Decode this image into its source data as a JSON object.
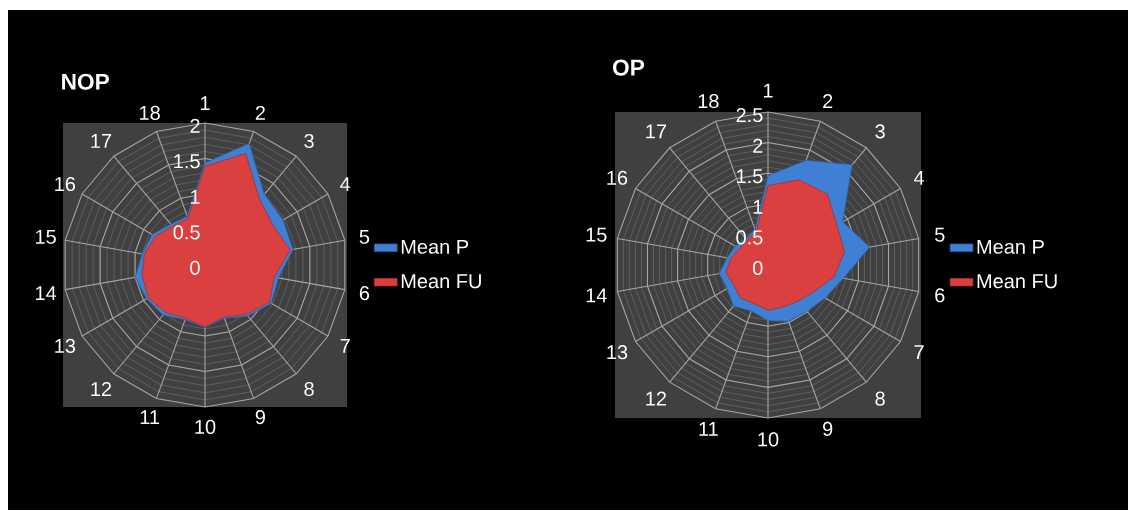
{
  "chart_data": [
    {
      "type": "radar",
      "title": "NOP",
      "categories": [
        "1",
        "2",
        "3",
        "4",
        "5",
        "6",
        "7",
        "8",
        "9",
        "10",
        "11",
        "12",
        "13",
        "14",
        "15",
        "16",
        "17",
        "18"
      ],
      "ylim": [
        0,
        2
      ],
      "yticks": [
        0,
        0.5,
        1,
        1.5,
        2
      ],
      "grid": true,
      "legend": "right",
      "series": [
        {
          "name": "Mean P",
          "color": "#3f7fd4",
          "values": [
            1.44,
            1.82,
            1.3,
            1.27,
            1.26,
            1.05,
            1.08,
            0.94,
            0.8,
            0.88,
            0.82,
            0.92,
            0.95,
            1.0,
            0.9,
            0.86,
            0.75,
            0.73
          ]
        },
        {
          "name": "Mean FU",
          "color": "#d9403f",
          "values": [
            1.39,
            1.67,
            1.2,
            1.11,
            1.22,
            0.99,
            1.05,
            0.91,
            0.78,
            0.87,
            0.8,
            0.87,
            0.92,
            0.9,
            0.87,
            0.81,
            0.71,
            0.7
          ]
        }
      ]
    },
    {
      "type": "radar",
      "title": "OP",
      "categories": [
        "1",
        "2",
        "3",
        "4",
        "5",
        "6",
        "7",
        "8",
        "9",
        "10",
        "11",
        "12",
        "13",
        "14",
        "15",
        "16",
        "17",
        "18"
      ],
      "ylim": [
        0,
        2.5
      ],
      "yticks": [
        0,
        0.5,
        1,
        1.5,
        2,
        2.5
      ],
      "grid": true,
      "legend": "right",
      "series": [
        {
          "name": "Mean P",
          "color": "#3f7fd4",
          "values": [
            1.46,
            1.82,
            2.14,
            1.41,
            1.69,
            1.25,
            1.08,
            0.99,
            0.98,
            0.91,
            0.8,
            0.88,
            0.77,
            0.81,
            0.68,
            0.62,
            0.56,
            0.62
          ]
        },
        {
          "name": "Mean FU",
          "color": "#d9403f",
          "values": [
            1.3,
            1.48,
            1.51,
            1.3,
            1.27,
            1.1,
            0.87,
            0.77,
            0.73,
            0.74,
            0.67,
            0.7,
            0.65,
            0.7,
            0.62,
            0.54,
            0.53,
            0.57
          ]
        }
      ]
    }
  ]
}
